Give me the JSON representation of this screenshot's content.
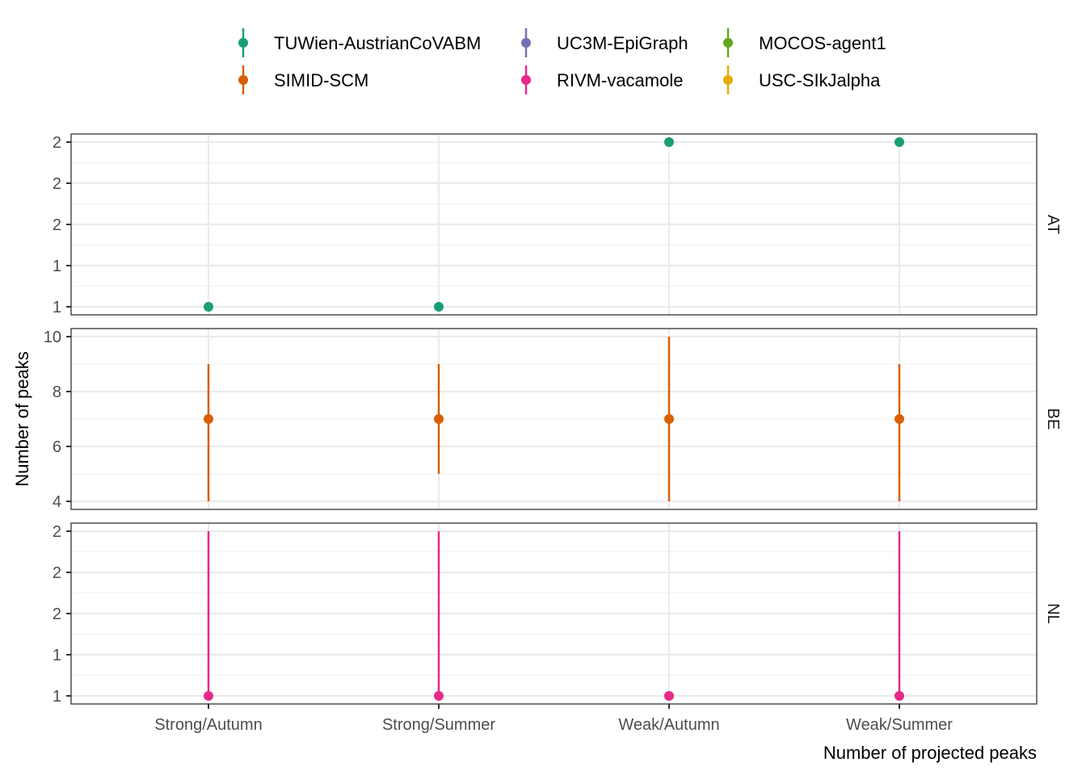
{
  "chart_data": {
    "type": "scatter",
    "subtype": "point-range faceted",
    "xlabel": "Number of projected peaks",
    "ylabel": "Number of peaks",
    "categories": [
      "Strong/Autumn",
      "Strong/Summer",
      "Weak/Autumn",
      "Weak/Summer"
    ],
    "grid": true,
    "legend_position": "top",
    "legend": [
      {
        "name": "TUWien-AustrianCoVABM",
        "color": "#1B9E77"
      },
      {
        "name": "SIMID-SCM",
        "color": "#D95F02"
      },
      {
        "name": "UC3M-EpiGraph",
        "color": "#7570B3"
      },
      {
        "name": "RIVM-vacamole",
        "color": "#E7298A"
      },
      {
        "name": "MOCOS-agent1",
        "color": "#66A61E"
      },
      {
        "name": "USC-SIkJalpha",
        "color": "#E6AB02"
      }
    ],
    "facets": [
      {
        "label": "AT",
        "ylim": [
          1,
          2
        ],
        "y_ticks": [
          1.0,
          1.25,
          1.5,
          1.75,
          2.0
        ],
        "y_tick_labels": [
          "1",
          "1",
          "2",
          "2",
          "2"
        ],
        "series": [
          {
            "name": "TUWien-AustrianCoVABM",
            "color": "#1B9E77",
            "points": [
              {
                "x": "Strong/Autumn",
                "y": 1,
                "lower": 1,
                "upper": 1
              },
              {
                "x": "Strong/Summer",
                "y": 1,
                "lower": 1,
                "upper": 1
              },
              {
                "x": "Weak/Autumn",
                "y": 2,
                "lower": 2,
                "upper": 2
              },
              {
                "x": "Weak/Summer",
                "y": 2,
                "lower": 2,
                "upper": 2
              }
            ]
          }
        ]
      },
      {
        "label": "BE",
        "ylim": [
          4,
          10
        ],
        "y_ticks": [
          4,
          6,
          8,
          10
        ],
        "y_tick_labels": [
          "4",
          "6",
          "8",
          "10"
        ],
        "series": [
          {
            "name": "SIMID-SCM",
            "color": "#D95F02",
            "points": [
              {
                "x": "Strong/Autumn",
                "y": 7,
                "lower": 4,
                "upper": 9
              },
              {
                "x": "Strong/Summer",
                "y": 7,
                "lower": 5,
                "upper": 9
              },
              {
                "x": "Weak/Autumn",
                "y": 7,
                "lower": 4,
                "upper": 10
              },
              {
                "x": "Weak/Summer",
                "y": 7,
                "lower": 4,
                "upper": 9
              }
            ]
          }
        ]
      },
      {
        "label": "NL",
        "ylim": [
          1,
          2
        ],
        "y_ticks": [
          1.0,
          1.25,
          1.5,
          1.75,
          2.0
        ],
        "y_tick_labels": [
          "1",
          "1",
          "2",
          "2",
          "2"
        ],
        "series": [
          {
            "name": "RIVM-vacamole",
            "color": "#E7298A",
            "points": [
              {
                "x": "Strong/Autumn",
                "y": 1,
                "lower": 1,
                "upper": 2
              },
              {
                "x": "Strong/Summer",
                "y": 1,
                "lower": 1,
                "upper": 2
              },
              {
                "x": "Weak/Autumn",
                "y": 1,
                "lower": 1,
                "upper": 1
              },
              {
                "x": "Weak/Summer",
                "y": 1,
                "lower": 1,
                "upper": 2
              }
            ]
          }
        ]
      }
    ]
  }
}
